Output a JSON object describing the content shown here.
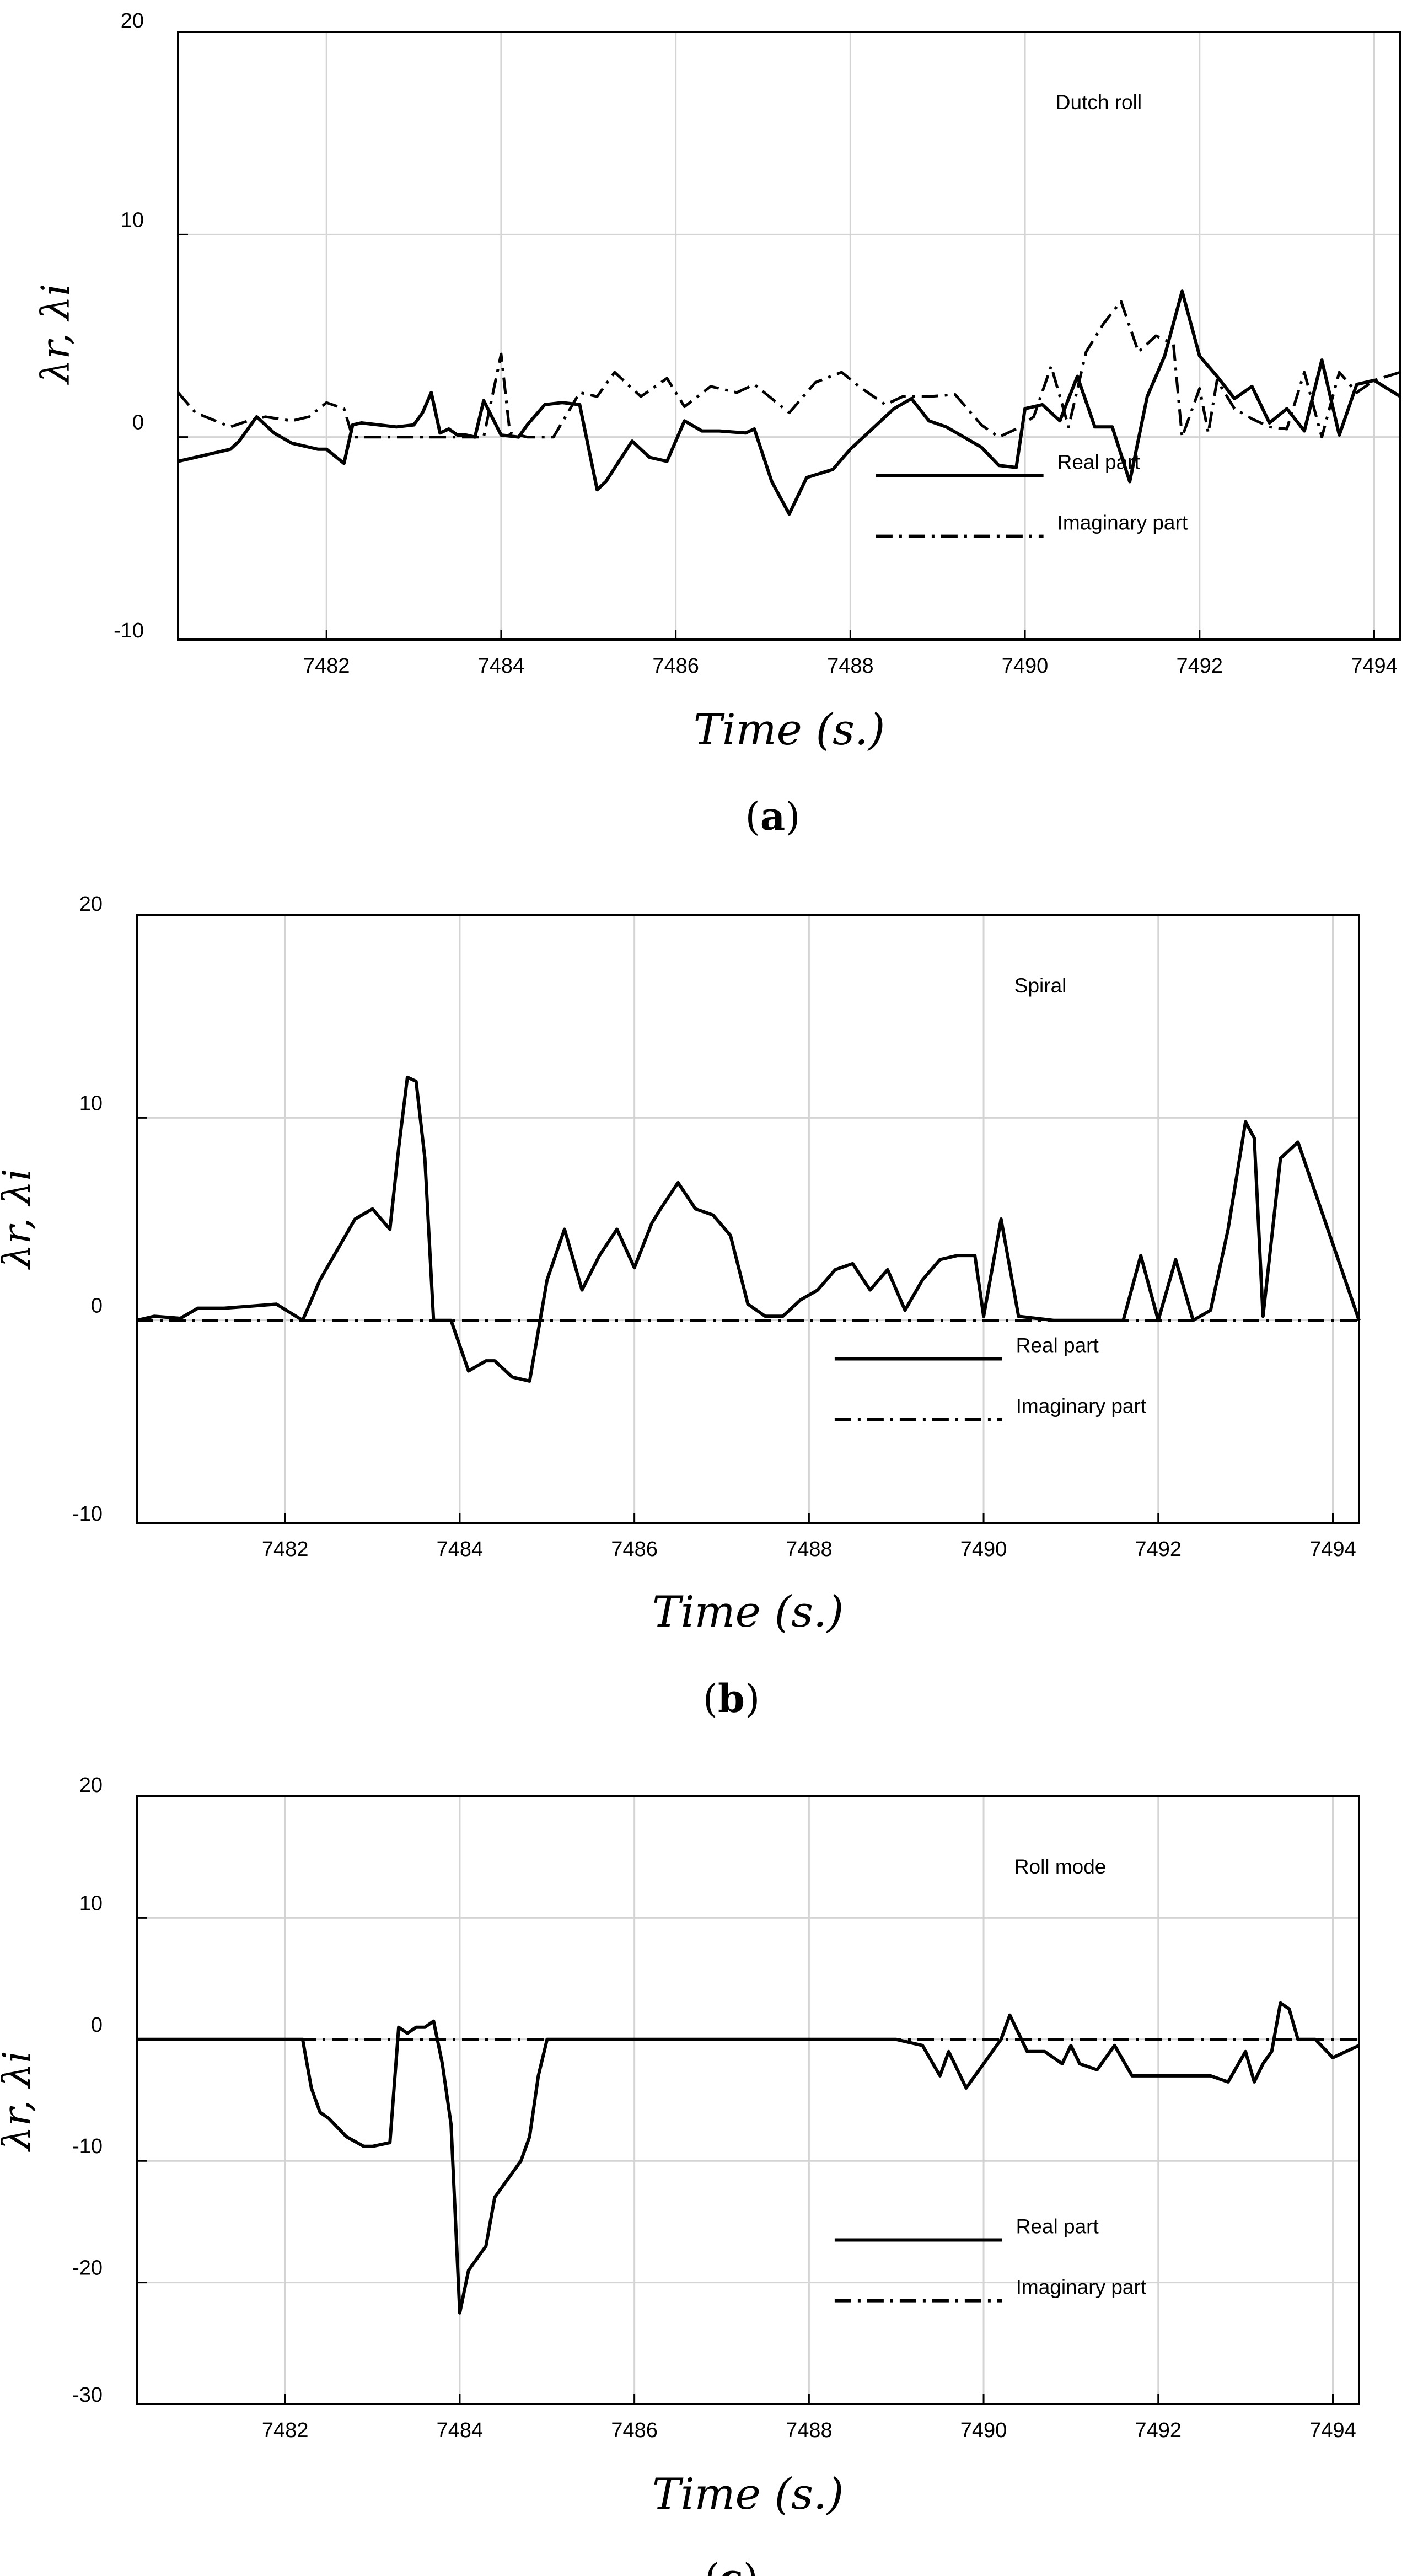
{
  "chart_data": [
    {
      "type": "line",
      "panel_label": "a",
      "annotation": "Dutch roll",
      "xlabel": "Time (s.)",
      "ylabel": "λr, λi",
      "xlim": [
        7480.3,
        7494.3
      ],
      "ylim": [
        -10,
        20
      ],
      "xticks": [
        7482,
        7484,
        7486,
        7488,
        7490,
        7492,
        7494
      ],
      "yticks": [
        -10,
        0,
        10,
        20
      ],
      "grid": true,
      "legend_position": "lower-center",
      "series": [
        {
          "name": "Real part",
          "style": "solid",
          "x": [
            7480.3,
            7480.5,
            7480.9,
            7481.0,
            7481.2,
            7481.4,
            7481.6,
            7481.8,
            7481.9,
            7482.0,
            7482.2,
            7482.3,
            7482.4,
            7482.6,
            7482.8,
            7483.0,
            7483.1,
            7483.2,
            7483.3,
            7483.4,
            7483.5,
            7483.6,
            7483.7,
            7483.8,
            7484.0,
            7484.2,
            7484.3,
            7484.5,
            7484.7,
            7484.9,
            7485.1,
            7485.2,
            7485.5,
            7485.7,
            7485.9,
            7486.1,
            7486.3,
            7486.5,
            7486.8,
            7486.9,
            7487.1,
            7487.3,
            7487.5,
            7487.8,
            7488.0,
            7488.2,
            7488.5,
            7488.7,
            7488.9,
            7489.1,
            7489.3,
            7489.5,
            7489.7,
            7489.9,
            7490.0,
            7490.2,
            7490.4,
            7490.6,
            7490.8,
            7491.0,
            7491.2,
            7491.4,
            7491.6,
            7491.8,
            7492.0,
            7492.2,
            7492.4,
            7492.6,
            7492.8,
            7493.0,
            7493.2,
            7493.4,
            7493.6,
            7493.8,
            7494.0,
            7494.3
          ],
          "values": [
            -1.2,
            -1.0,
            -0.6,
            -0.2,
            1.0,
            0.2,
            -0.3,
            -0.5,
            -0.6,
            -0.6,
            -1.3,
            0.6,
            0.7,
            0.6,
            0.5,
            0.6,
            1.2,
            2.2,
            0.2,
            0.4,
            0.1,
            0.1,
            0.0,
            1.8,
            0.1,
            0.0,
            0.6,
            1.6,
            1.7,
            1.6,
            -2.6,
            -2.2,
            -0.2,
            -1.0,
            -1.2,
            0.8,
            0.3,
            0.3,
            0.2,
            0.4,
            -2.2,
            -3.8,
            -2.0,
            -1.6,
            -0.6,
            0.2,
            1.4,
            1.9,
            0.8,
            0.5,
            0.0,
            -0.5,
            -1.4,
            -1.5,
            1.4,
            1.6,
            0.8,
            3.0,
            0.5,
            0.5,
            -2.2,
            2.0,
            4.0,
            7.2,
            4.0,
            3.0,
            1.9,
            2.5,
            0.7,
            1.4,
            0.3,
            3.8,
            0.1,
            2.6,
            2.8,
            2.0
          ]
        },
        {
          "name": "Imaginary part",
          "style": "dashdot",
          "x": [
            7480.3,
            7480.5,
            7480.9,
            7481.1,
            7481.3,
            7481.6,
            7481.8,
            7482.0,
            7482.2,
            7482.3,
            7482.5,
            7482.8,
            7483.0,
            7483.3,
            7483.6,
            7483.8,
            7484.0,
            7484.1,
            7484.3,
            7484.6,
            7484.9,
            7485.1,
            7485.3,
            7485.6,
            7485.9,
            7486.1,
            7486.4,
            7486.7,
            7486.9,
            7487.1,
            7487.3,
            7487.6,
            7487.9,
            7488.1,
            7488.4,
            7488.6,
            7488.9,
            7489.2,
            7489.5,
            7489.7,
            7489.9,
            7490.1,
            7490.3,
            7490.5,
            7490.7,
            7490.9,
            7491.1,
            7491.3,
            7491.5,
            7491.7,
            7491.8,
            7492.0,
            7492.1,
            7492.2,
            7492.4,
            7492.6,
            7492.8,
            7493.0,
            7493.2,
            7493.4,
            7493.6,
            7493.8,
            7494.0,
            7494.3
          ],
          "values": [
            2.2,
            1.2,
            0.5,
            0.8,
            1.0,
            0.8,
            1.0,
            1.7,
            1.4,
            0.0,
            0.0,
            0.0,
            0.0,
            0.0,
            0.0,
            0.0,
            4.1,
            0.2,
            0.0,
            0.0,
            2.2,
            2.0,
            3.2,
            2.0,
            2.9,
            1.5,
            2.5,
            2.2,
            2.6,
            1.9,
            1.2,
            2.7,
            3.2,
            2.5,
            1.6,
            2.0,
            2.0,
            2.1,
            0.6,
            0.0,
            0.4,
            1.0,
            3.5,
            0.5,
            4.2,
            5.6,
            6.7,
            4.2,
            5.0,
            4.6,
            0.0,
            2.4,
            0.2,
            2.8,
            1.4,
            0.9,
            0.5,
            0.4,
            3.2,
            0.0,
            3.2,
            2.2,
            2.8,
            3.2
          ]
        }
      ]
    },
    {
      "type": "line",
      "panel_label": "b",
      "annotation": "Spiral",
      "xlabel": "Time (s.)",
      "ylabel": "λr, λi",
      "xlim": [
        7480.3,
        7494.3
      ],
      "ylim": [
        -10,
        20
      ],
      "xticks": [
        7482,
        7484,
        7486,
        7488,
        7490,
        7492,
        7494
      ],
      "yticks": [
        -10,
        0,
        10,
        20
      ],
      "grid": true,
      "legend_position": "lower-center",
      "series": [
        {
          "name": "Real part",
          "style": "solid",
          "x": [
            7480.3,
            7480.5,
            7480.8,
            7481.0,
            7481.3,
            7481.6,
            7481.9,
            7482.2,
            7482.4,
            7482.6,
            7482.8,
            7483.0,
            7483.2,
            7483.3,
            7483.4,
            7483.5,
            7483.6,
            7483.7,
            7483.9,
            7484.1,
            7484.3,
            7484.4,
            7484.6,
            7484.8,
            7485.0,
            7485.2,
            7485.4,
            7485.6,
            7485.8,
            7486.0,
            7486.2,
            7486.3,
            7486.5,
            7486.7,
            7486.9,
            7487.1,
            7487.3,
            7487.5,
            7487.7,
            7487.9,
            7488.1,
            7488.3,
            7488.5,
            7488.7,
            7488.9,
            7489.1,
            7489.3,
            7489.5,
            7489.7,
            7489.9,
            7490.0,
            7490.2,
            7490.4,
            7490.8,
            7491.2,
            7491.6,
            7491.8,
            7492.0,
            7492.2,
            7492.4,
            7492.6,
            7492.8,
            7493.0,
            7493.1,
            7493.2,
            7493.4,
            7493.6,
            7494.3
          ],
          "values": [
            0.0,
            0.2,
            0.1,
            0.6,
            0.6,
            0.7,
            0.8,
            0.0,
            2.0,
            3.5,
            5.0,
            5.5,
            4.5,
            8.5,
            12.0,
            11.8,
            8.0,
            0.0,
            0.0,
            -2.5,
            -2.0,
            -2.0,
            -2.8,
            -3.0,
            2.0,
            4.5,
            1.5,
            3.2,
            4.5,
            2.6,
            4.8,
            5.5,
            6.8,
            5.5,
            5.2,
            4.2,
            0.8,
            0.2,
            0.2,
            1.0,
            1.5,
            2.5,
            2.8,
            1.5,
            2.5,
            0.5,
            2.0,
            3.0,
            3.2,
            3.2,
            0.2,
            5.0,
            0.2,
            0.0,
            0.0,
            0.0,
            3.2,
            0.0,
            3.0,
            0.0,
            0.5,
            4.5,
            9.8,
            9.0,
            0.2,
            8.0,
            8.8,
            0.0
          ]
        },
        {
          "name": "Imaginary part",
          "style": "dashdot",
          "x": [
            7480.3,
            7494.3
          ],
          "values": [
            0.0,
            0.0
          ]
        }
      ]
    },
    {
      "type": "line",
      "panel_label": "c",
      "annotation": "Roll mode",
      "xlabel": "Time (s.)",
      "ylabel": "λr, λi",
      "xlim": [
        7480.3,
        7494.3
      ],
      "ylim": [
        -30,
        20
      ],
      "xticks": [
        7482,
        7484,
        7486,
        7488,
        7490,
        7492,
        7494
      ],
      "yticks": [
        -30,
        -20,
        -10,
        0,
        10,
        20
      ],
      "grid": true,
      "legend_position": "lower-center",
      "series": [
        {
          "name": "Real part",
          "style": "solid",
          "x": [
            7480.3,
            7481.0,
            7481.6,
            7482.2,
            7482.3,
            7482.4,
            7482.5,
            7482.7,
            7482.9,
            7483.0,
            7483.2,
            7483.3,
            7483.4,
            7483.5,
            7483.6,
            7483.7,
            7483.8,
            7483.9,
            7484.0,
            7484.1,
            7484.3,
            7484.4,
            7484.5,
            7484.7,
            7484.8,
            7484.9,
            7485.0,
            7485.5,
            7486.0,
            7486.5,
            7487.0,
            7487.5,
            7488.0,
            7488.5,
            7489.0,
            7489.3,
            7489.5,
            7489.6,
            7489.8,
            7489.9,
            7490.0,
            7490.2,
            7490.3,
            7490.5,
            7490.7,
            7490.9,
            7491.0,
            7491.1,
            7491.3,
            7491.5,
            7491.7,
            7491.9,
            7492.0,
            7492.2,
            7492.4,
            7492.6,
            7492.8,
            7493.0,
            7493.1,
            7493.2,
            7493.3,
            7493.4,
            7493.5,
            7493.6,
            7493.8,
            7494.0,
            7494.3
          ],
          "values": [
            0.0,
            0.0,
            0.0,
            0.0,
            -4.0,
            -6.0,
            -6.5,
            -8.0,
            -8.8,
            -8.8,
            -8.5,
            1.0,
            0.5,
            1.0,
            1.0,
            1.5,
            -2.0,
            -7.0,
            -22.5,
            -19.0,
            -17.0,
            -13.0,
            -12.0,
            -10.0,
            -8.0,
            -3.0,
            0.0,
            0.0,
            0.0,
            0.0,
            0.0,
            0.0,
            0.0,
            0.0,
            0.0,
            -0.5,
            -3.0,
            -1.0,
            -4.0,
            -3.0,
            -2.0,
            0.0,
            2.0,
            -1.0,
            -1.0,
            -2.0,
            -0.5,
            -2.0,
            -2.5,
            -0.5,
            -3.0,
            -3.0,
            -3.0,
            -3.0,
            -3.0,
            -3.0,
            -3.5,
            -1.0,
            -3.5,
            -2.0,
            -1.0,
            3.0,
            2.5,
            0.0,
            0.0,
            -1.5,
            -0.5
          ]
        },
        {
          "name": "Imaginary part",
          "style": "dashdot",
          "x": [
            7480.3,
            7494.3
          ],
          "values": [
            0.0,
            0.0
          ]
        }
      ]
    }
  ]
}
